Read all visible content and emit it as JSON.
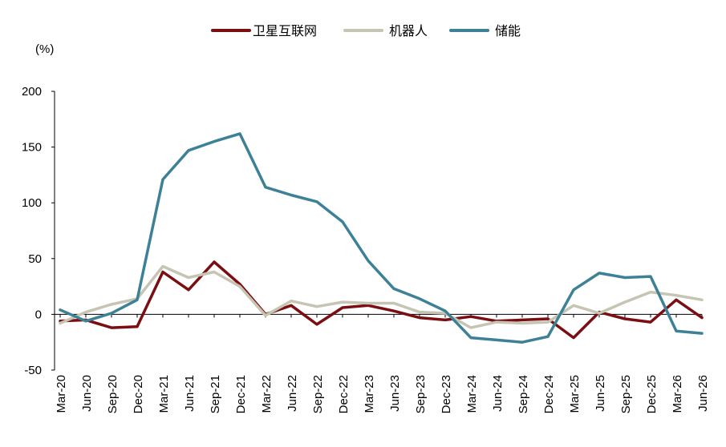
{
  "chart_data": {
    "type": "line",
    "unit_label": "(%)",
    "categories": [
      "Mar-20",
      "Jun-20",
      "Sep-20",
      "Dec-20",
      "Mar-21",
      "Jun-21",
      "Sep-21",
      "Dec-21",
      "Mar-22",
      "Jun-22",
      "Sep-22",
      "Dec-22",
      "Mar-23",
      "Jun-23",
      "Sep-23",
      "Dec-23",
      "Mar-24",
      "Jun-24",
      "Sep-24",
      "Dec-24",
      "Mar-25",
      "Jun-25",
      "Sep-25",
      "Dec-25",
      "Mar-26",
      "Jun-26"
    ],
    "ylim": [
      -50,
      200
    ],
    "yticks": [
      -50,
      0,
      50,
      100,
      150,
      200
    ],
    "grid": false,
    "legend_position": "top-center",
    "series": [
      {
        "name": "卫星互联网",
        "color": "#7b0e12",
        "values": [
          -6,
          -5,
          -12,
          -11,
          38,
          22,
          47,
          27,
          0,
          8,
          -9,
          6,
          8,
          3,
          -3,
          -5,
          -2,
          -6,
          -5,
          -4,
          -21,
          2,
          -4,
          -7,
          13,
          -3
        ]
      },
      {
        "name": "机器人",
        "color": "#c6c5b3",
        "values": [
          -8,
          2,
          9,
          14,
          43,
          33,
          38,
          25,
          -1,
          12,
          7,
          11,
          10,
          10,
          2,
          1,
          -12,
          -7,
          -8,
          -7,
          8,
          1,
          11,
          20,
          17,
          13
        ]
      },
      {
        "name": "储能",
        "color": "#3d8196",
        "values": [
          4,
          -6,
          1,
          13,
          121,
          147,
          155,
          162,
          114,
          107,
          101,
          83,
          48,
          23,
          14,
          3,
          -21,
          -23,
          -25,
          -20,
          22,
          37,
          33,
          34,
          -15,
          -17
        ]
      }
    ]
  }
}
